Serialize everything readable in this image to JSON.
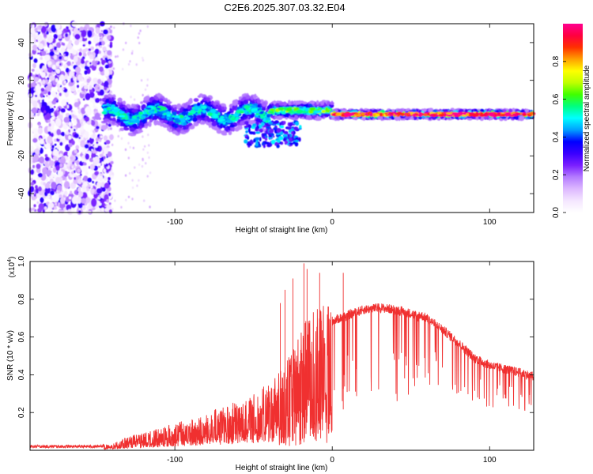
{
  "title": "C2E6.2025.307.03.32.E04",
  "chart_data": [
    {
      "type": "heatmap",
      "name": "spectrogram",
      "xlabel": "Height of straight line (km)",
      "ylabel": "Frequency (Hz)",
      "xlim": [
        -192,
        128
      ],
      "ylim": [
        -50,
        50
      ],
      "xticks": [
        -100,
        0,
        100
      ],
      "yticks": [
        -40,
        -20,
        0,
        20,
        40
      ],
      "colorbar": {
        "label": "Normalized spectral amplitude",
        "range": [
          0,
          1
        ],
        "ticks": [
          "0.0",
          "0.2",
          "0.4",
          "0.6",
          "0.8"
        ],
        "colormap": [
          "#ffffff",
          "#f4e6ff",
          "#ddb8ff",
          "#b57cff",
          "#7a1fff",
          "#3a00ff",
          "#0000ff",
          "#00a0ff",
          "#00ffff",
          "#00ff80",
          "#40ff00",
          "#c0ff00",
          "#ffff00",
          "#ffa000",
          "#ff3000",
          "#ff0040",
          "#ff0090"
        ]
      },
      "features": [
        {
          "name": "noise_field",
          "x_range": [
            -192,
            -140
          ],
          "y_range": [
            -50,
            50
          ],
          "amplitude": 0.2
        },
        {
          "name": "band_segment",
          "x_range": [
            -145,
            -40
          ],
          "center_hz": 2,
          "spread_hz": 7,
          "amplitude": 0.5
        },
        {
          "name": "band_segment",
          "x_range": [
            -40,
            0
          ],
          "center_hz": 4,
          "spread_hz": 4,
          "amplitude": 0.6
        },
        {
          "name": "band_segment",
          "x_range": [
            0,
            128
          ],
          "center_hz": 2,
          "spread_hz": 2,
          "amplitude": 0.95
        }
      ]
    },
    {
      "type": "line",
      "name": "snr",
      "xlabel": "Height of straight line (km)",
      "ylabel": "SNR (10 * v/v)",
      "multiplier_label": "(x10",
      "multiplier_exp": "4",
      "multiplier_close": ")",
      "xlim": [
        -192,
        128
      ],
      "ylim": [
        0,
        1.0
      ],
      "xticks": [
        -100,
        0,
        100
      ],
      "yticks": [
        "0.2",
        "0.4",
        "0.6",
        "0.8",
        "1.0"
      ],
      "color": "#f03030",
      "envelope": {
        "x": [
          -192,
          -150,
          -140,
          -130,
          -120,
          -110,
          -100,
          -90,
          -80,
          -70,
          -60,
          -50,
          -40,
          -35,
          -30,
          -25,
          -20,
          -15,
          -10,
          -5,
          0,
          10,
          20,
          30,
          40,
          50,
          60,
          70,
          80,
          90,
          100,
          110,
          120,
          128
        ],
        "y": [
          0.02,
          0.02,
          0.03,
          0.06,
          0.08,
          0.1,
          0.12,
          0.14,
          0.17,
          0.19,
          0.22,
          0.25,
          0.3,
          0.35,
          0.4,
          0.46,
          0.55,
          0.62,
          0.65,
          0.68,
          0.7,
          0.73,
          0.76,
          0.77,
          0.76,
          0.74,
          0.7,
          0.64,
          0.57,
          0.49,
          0.45,
          0.43,
          0.41,
          0.39
        ]
      },
      "peaks": [
        {
          "x": -33,
          "y": 0.78
        },
        {
          "x": -30,
          "y": 0.85
        },
        {
          "x": -25,
          "y": 0.91
        },
        {
          "x": -18,
          "y": 0.99
        },
        {
          "x": -16,
          "y": 0.96
        },
        {
          "x": -8,
          "y": 0.94
        },
        {
          "x": 7,
          "y": 0.94
        }
      ]
    }
  ]
}
